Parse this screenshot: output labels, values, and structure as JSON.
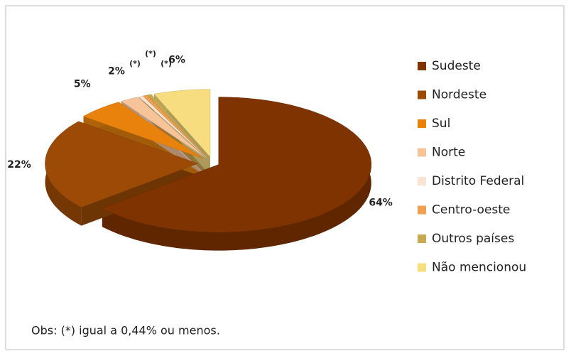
{
  "chart_data": {
    "type": "pie",
    "categories": [
      "Sudeste",
      "Nordeste",
      "Sul",
      "Norte",
      "Distrito Federal",
      "Centro-oeste",
      "Outros países",
      "Não mencionou"
    ],
    "values": [
      64,
      22,
      5,
      2,
      0.44,
      0.44,
      0.44,
      6
    ],
    "value_labels": [
      "64%",
      "22%",
      "5%",
      "2%",
      "(*)",
      "(*)",
      "(*)",
      "6%"
    ],
    "colors": [
      "#7f3300",
      "#9c4a06",
      "#e8820c",
      "#f7c49a",
      "#fbe3d3",
      "#f0a050",
      "#c8a850",
      "#f7dc80"
    ],
    "legend": "right",
    "annotation": "Obs: (*) igual a 0,44% ou menos."
  }
}
